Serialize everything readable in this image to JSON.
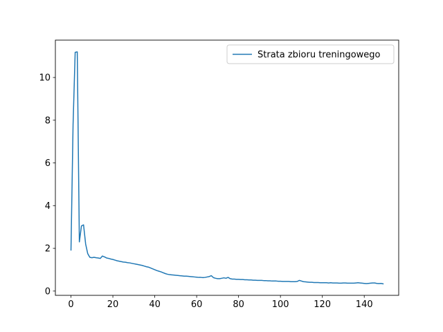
{
  "chart_data": {
    "type": "line",
    "title": "",
    "xlabel": "",
    "ylabel": "",
    "xlim": [
      -7.45,
      156.45
    ],
    "ylim": [
      -0.2,
      11.75
    ],
    "grid": false,
    "legend_position": "top-right",
    "xticks": [
      0,
      20,
      40,
      60,
      80,
      100,
      120,
      140
    ],
    "yticks": [
      0,
      2,
      4,
      6,
      8,
      10
    ],
    "series": [
      {
        "name": "Strata zbioru treningowego",
        "color": "#1f77b4",
        "x": [
          0,
          1,
          2,
          3,
          4,
          5,
          6,
          7,
          8,
          9,
          10,
          11,
          12,
          13,
          14,
          15,
          16,
          17,
          18,
          19,
          20,
          21,
          22,
          23,
          24,
          25,
          26,
          27,
          28,
          29,
          30,
          31,
          32,
          33,
          34,
          35,
          36,
          37,
          38,
          39,
          40,
          41,
          42,
          43,
          44,
          45,
          46,
          47,
          48,
          49,
          50,
          51,
          52,
          53,
          54,
          55,
          56,
          57,
          58,
          59,
          60,
          61,
          62,
          63,
          64,
          65,
          66,
          67,
          68,
          69,
          70,
          71,
          72,
          73,
          74,
          75,
          76,
          77,
          78,
          79,
          80,
          81,
          82,
          83,
          84,
          85,
          86,
          87,
          88,
          89,
          90,
          91,
          92,
          93,
          94,
          95,
          96,
          97,
          98,
          99,
          100,
          101,
          102,
          103,
          104,
          105,
          106,
          107,
          108,
          109,
          110,
          111,
          112,
          113,
          114,
          115,
          116,
          117,
          118,
          119,
          120,
          121,
          122,
          123,
          124,
          125,
          126,
          127,
          128,
          129,
          130,
          131,
          132,
          133,
          134,
          135,
          136,
          137,
          138,
          139,
          140,
          141,
          142,
          143,
          144,
          145,
          146,
          147,
          148,
          149
        ],
        "y": [
          1.92,
          7.8,
          11.18,
          11.2,
          2.3,
          3.05,
          3.1,
          2.2,
          1.75,
          1.58,
          1.56,
          1.58,
          1.56,
          1.55,
          1.53,
          1.64,
          1.6,
          1.55,
          1.53,
          1.5,
          1.48,
          1.45,
          1.42,
          1.4,
          1.38,
          1.36,
          1.35,
          1.33,
          1.32,
          1.3,
          1.28,
          1.26,
          1.24,
          1.22,
          1.2,
          1.17,
          1.14,
          1.12,
          1.08,
          1.04,
          1.0,
          0.96,
          0.93,
          0.9,
          0.86,
          0.82,
          0.79,
          0.77,
          0.76,
          0.75,
          0.74,
          0.73,
          0.72,
          0.71,
          0.7,
          0.7,
          0.69,
          0.68,
          0.67,
          0.66,
          0.65,
          0.64,
          0.64,
          0.63,
          0.64,
          0.66,
          0.68,
          0.72,
          0.63,
          0.6,
          0.58,
          0.58,
          0.6,
          0.62,
          0.6,
          0.64,
          0.58,
          0.56,
          0.56,
          0.55,
          0.55,
          0.54,
          0.54,
          0.53,
          0.53,
          0.52,
          0.52,
          0.51,
          0.51,
          0.5,
          0.5,
          0.5,
          0.49,
          0.49,
          0.48,
          0.48,
          0.47,
          0.47,
          0.47,
          0.46,
          0.46,
          0.45,
          0.45,
          0.45,
          0.45,
          0.44,
          0.44,
          0.44,
          0.45,
          0.5,
          0.47,
          0.44,
          0.43,
          0.42,
          0.41,
          0.41,
          0.4,
          0.4,
          0.4,
          0.39,
          0.39,
          0.39,
          0.39,
          0.38,
          0.39,
          0.38,
          0.38,
          0.38,
          0.37,
          0.37,
          0.38,
          0.38,
          0.37,
          0.37,
          0.37,
          0.37,
          0.38,
          0.39,
          0.38,
          0.37,
          0.36,
          0.35,
          0.36,
          0.37,
          0.38,
          0.38,
          0.36,
          0.35,
          0.36,
          0.34
        ]
      }
    ]
  }
}
